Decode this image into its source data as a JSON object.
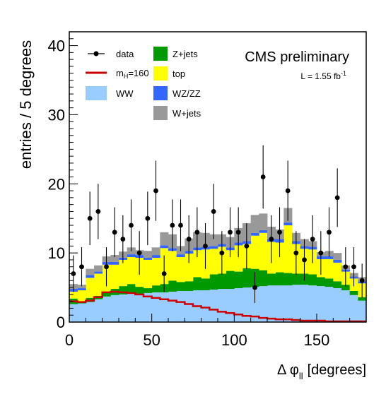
{
  "chart_data": {
    "type": "bar",
    "stacked": true,
    "xlabel_main": "Δ φ",
    "xlabel_sub": "ll",
    "xlabel_unit": "[degrees]",
    "ylabel": "entries / 5 degrees",
    "experiment": "CMS preliminary",
    "lumi_main": "L = 1.55 fb",
    "lumi_sup": "-1",
    "xlim": [
      0,
      180
    ],
    "ylim": [
      0,
      42
    ],
    "xticks": [
      0,
      50,
      100,
      150
    ],
    "yticks": [
      0,
      10,
      20,
      30,
      40
    ],
    "bin_edges": [
      0,
      5,
      10,
      15,
      20,
      25,
      30,
      35,
      40,
      45,
      50,
      55,
      60,
      65,
      70,
      75,
      80,
      85,
      90,
      95,
      100,
      105,
      110,
      115,
      120,
      125,
      130,
      135,
      140,
      145,
      150,
      155,
      160,
      165,
      170,
      175,
      180
    ],
    "series": [
      {
        "name": "WW",
        "color": "#99ccff",
        "values": [
          2.6,
          2.7,
          2.9,
          3.3,
          3.7,
          3.9,
          4.0,
          4.1,
          4.1,
          4.2,
          4.3,
          4.3,
          4.4,
          4.5,
          4.5,
          4.6,
          4.6,
          4.7,
          4.8,
          4.8,
          4.9,
          5.0,
          5.1,
          5.2,
          5.3,
          5.3,
          5.3,
          5.4,
          5.4,
          5.3,
          5.2,
          5.1,
          4.9,
          4.6,
          3.9,
          3.1
        ]
      },
      {
        "name": "Z+jets",
        "color": "#009900",
        "values": [
          0.8,
          0.3,
          0.6,
          0.5,
          0.6,
          0.9,
          1.2,
          1.4,
          1.0,
          0.7,
          1.0,
          1.2,
          1.6,
          1.3,
          1.4,
          1.9,
          1.7,
          2.2,
          2.2,
          2.6,
          2.4,
          2.8,
          2.6,
          2.3,
          1.7,
          1.9,
          1.8,
          1.6,
          1.6,
          1.6,
          1.3,
          1.2,
          1.0,
          0.8,
          0.6,
          0.5
        ]
      },
      {
        "name": "top",
        "color": "#ffff00",
        "values": [
          1.0,
          1.6,
          2.9,
          3.2,
          4.0,
          3.5,
          3.8,
          3.9,
          4.2,
          4.1,
          4.0,
          5.2,
          4.3,
          3.6,
          4.0,
          3.9,
          4.2,
          3.7,
          3.9,
          3.0,
          3.8,
          3.5,
          4.8,
          5.4,
          4.6,
          4.3,
          6.9,
          4.3,
          3.6,
          3.6,
          2.6,
          2.8,
          2.7,
          1.9,
          1.8,
          2.0
        ]
      },
      {
        "name": "WZ/ZZ",
        "color": "#3366ff",
        "values": [
          0.4,
          0.3,
          0.4,
          0.3,
          0.4,
          0.4,
          0.3,
          0.4,
          0.4,
          0.3,
          0.4,
          0.4,
          0.4,
          0.4,
          0.4,
          0.4,
          0.4,
          0.4,
          0.4,
          0.4,
          0.4,
          0.4,
          0.4,
          0.4,
          0.4,
          0.5,
          0.4,
          0.4,
          0.4,
          0.4,
          0.4,
          0.4,
          0.4,
          0.3,
          0.3,
          0.3
        ]
      },
      {
        "name": "W+jets",
        "color": "#999999",
        "values": [
          0.7,
          0.5,
          0.9,
          0.9,
          0.8,
          1.0,
          0.9,
          1.0,
          0.7,
          1.0,
          1.1,
          1.9,
          2.0,
          1.2,
          1.8,
          2.2,
          2.0,
          1.7,
          1.4,
          1.5,
          2.1,
          2.6,
          2.6,
          2.4,
          1.8,
          1.4,
          2.1,
          1.2,
          1.0,
          0.8,
          0.6,
          0.8,
          1.0,
          0.6,
          0.5,
          0.6
        ]
      }
    ],
    "signal": {
      "name": "m_H=160",
      "name_main": "m",
      "name_sub": "H",
      "name_rest": "=160",
      "color": "#cc0000",
      "values": [
        3.0,
        2.9,
        3.1,
        3.6,
        4.3,
        4.4,
        4.3,
        4.2,
        4.0,
        3.7,
        3.5,
        3.3,
        3.1,
        2.9,
        2.6,
        2.3,
        2.1,
        1.8,
        1.5,
        1.3,
        1.1,
        0.9,
        0.8,
        0.6,
        0.5,
        0.4,
        0.4,
        0.3,
        0.2,
        0.2,
        0.2,
        0.1,
        0.1,
        0.1,
        0.1,
        0.1
      ]
    },
    "data": {
      "name": "data",
      "values": [
        7,
        8,
        15,
        16,
        8,
        13,
        12,
        14,
        10,
        15,
        19,
        7,
        14,
        14,
        12,
        13,
        11,
        16,
        10,
        13,
        13,
        11,
        5,
        21,
        12,
        13,
        19,
        10,
        9,
        12,
        10,
        13,
        18,
        8,
        8,
        6
      ]
    },
    "legend": [
      {
        "key": "data",
        "label": "data"
      },
      {
        "key": "Z+jets",
        "label": "Z+jets"
      },
      {
        "key": "signal",
        "label_main": "m",
        "label_sub": "H",
        "label_rest": "=160"
      },
      {
        "key": "top",
        "label": "top"
      },
      {
        "key": "WW",
        "label": "WW"
      },
      {
        "key": "WZ/ZZ",
        "label": "WZ/ZZ"
      },
      {
        "key": "W+jets",
        "label": "W+jets"
      }
    ]
  }
}
